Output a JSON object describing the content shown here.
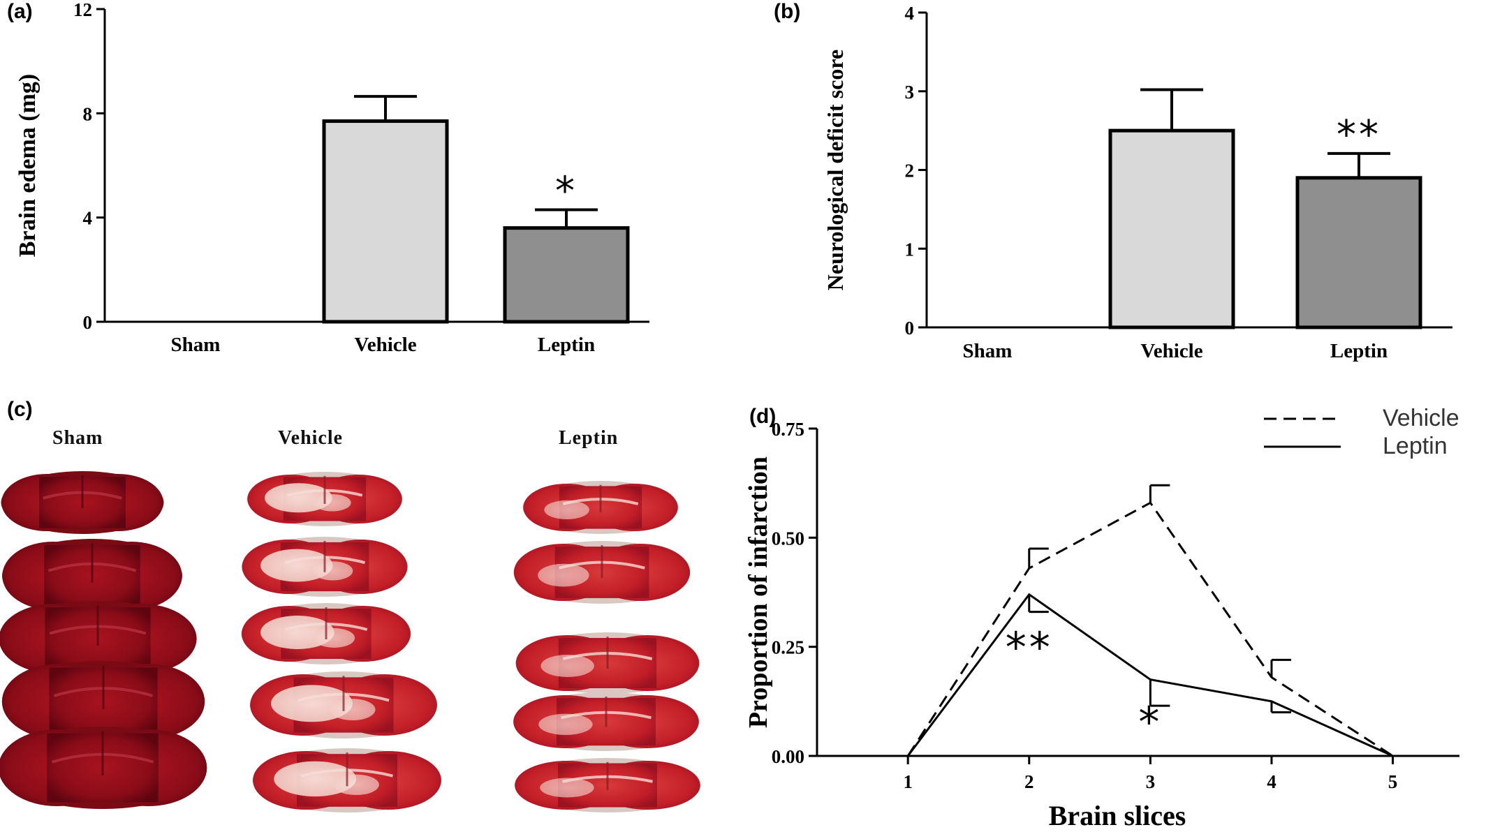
{
  "panels": {
    "a": "(a)",
    "b": "(b)",
    "c": "(c)",
    "d": "(d)"
  },
  "photos": {
    "columns": [
      "Sham",
      "Vehicle",
      "Leptin"
    ]
  },
  "colors": {
    "sham": "#ffffff",
    "vehicle": "#d9d9d9",
    "leptin": "#8f8f8f",
    "tissue_dark": "#8e0e1c",
    "tissue_red": "#c8202a",
    "infarct_pale": "#f3d6d0"
  },
  "chart_data": [
    {
      "id": "a",
      "type": "bar",
      "categories": [
        "Sham",
        "Vehicle",
        "Leptin"
      ],
      "values": [
        0,
        7.7,
        3.6
      ],
      "errors": [
        0,
        0.95,
        0.7
      ],
      "significance": [
        "",
        "",
        "*"
      ],
      "ylabel": "Brain edema (mg)",
      "ylim": [
        0,
        12
      ],
      "yticks": [
        "0",
        "4",
        "8",
        "12"
      ],
      "ytick_values": [
        0,
        4,
        8,
        12
      ]
    },
    {
      "id": "b",
      "type": "bar",
      "categories": [
        "Sham",
        "Vehicle",
        "Leptin"
      ],
      "values": [
        0,
        2.5,
        1.9
      ],
      "errors": [
        0,
        0.52,
        0.31
      ],
      "significance": [
        "",
        "",
        "**"
      ],
      "ylabel": "Neurological deficit score",
      "ylim": [
        0,
        4
      ],
      "yticks": [
        "0",
        "1",
        "2",
        "3",
        "4"
      ],
      "ytick_values": [
        0,
        1,
        2,
        3,
        4
      ]
    },
    {
      "id": "d",
      "type": "line",
      "x": [
        1,
        2,
        3,
        4,
        5
      ],
      "xticks": [
        "1",
        "2",
        "3",
        "4",
        "5"
      ],
      "series": [
        {
          "name": "Vehicle",
          "style": "dashed",
          "values": [
            0,
            0.43,
            0.58,
            0.18,
            0
          ],
          "errors": [
            0,
            0.045,
            0.04,
            0.04,
            0
          ],
          "error_dir": "up"
        },
        {
          "name": "Leptin",
          "style": "solid",
          "values": [
            0,
            0.37,
            0.175,
            0.125,
            0
          ],
          "errors": [
            0,
            0.04,
            0.06,
            0.025,
            0
          ],
          "error_dir": "down"
        }
      ],
      "significance": [
        {
          "x": 2,
          "text": "**"
        },
        {
          "x": 3,
          "text": "*"
        }
      ],
      "xlabel": "Brain slices",
      "ylabel": "Proportion of infarction",
      "ylim": [
        0,
        0.75
      ],
      "xlim": [
        0.25,
        5.55
      ],
      "yticks": [
        "0.00",
        "0.25",
        "0.50",
        "0.75"
      ],
      "ytick_values": [
        0,
        0.25,
        0.5,
        0.75
      ],
      "legend": "top-right"
    }
  ]
}
